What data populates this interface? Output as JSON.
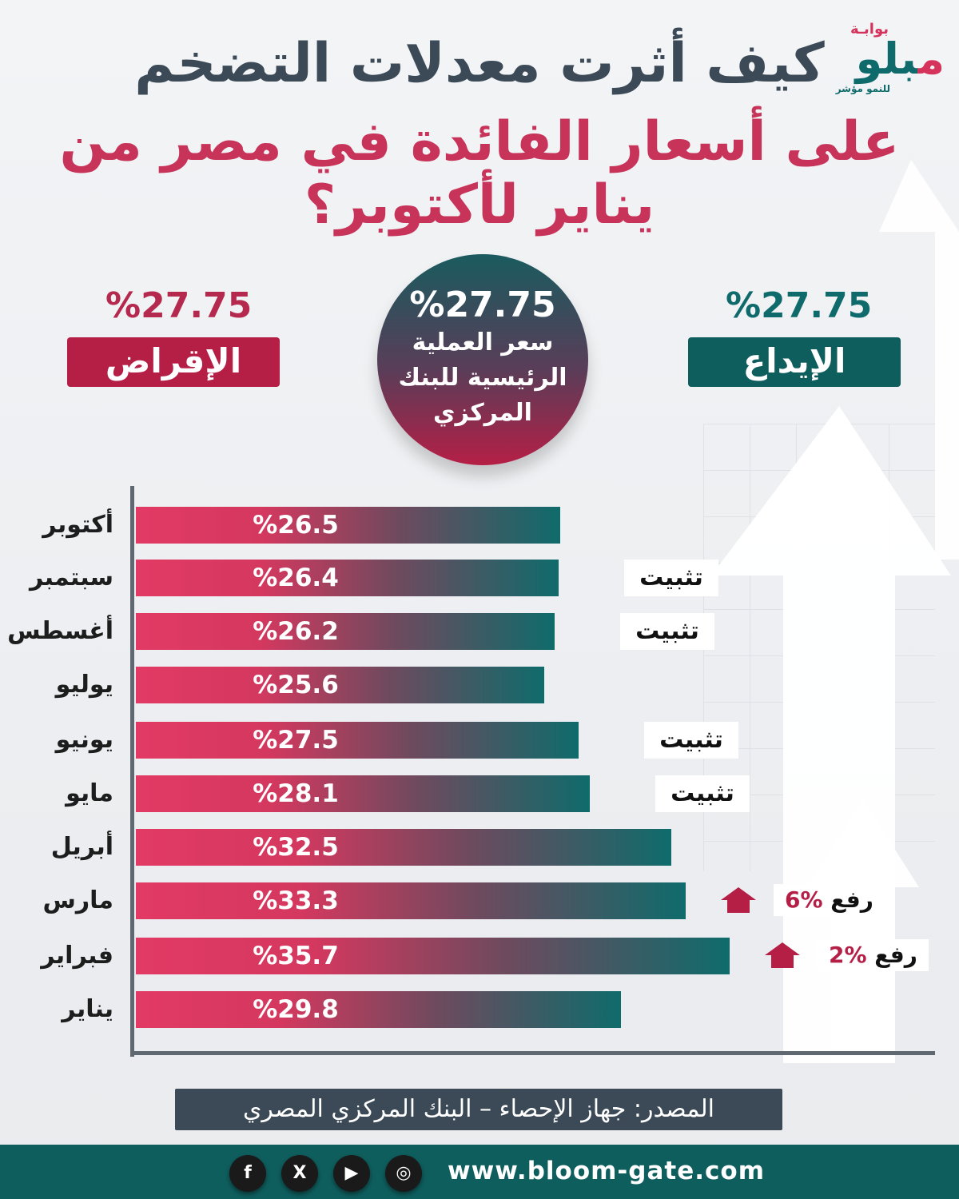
{
  "header": {
    "title_line1": "كيف أثرت معدلات التضخم",
    "title_line2": "على أسعار الفائدة في مصر من يناير لأكتوبر؟"
  },
  "logo": {
    "small": "بوابـة",
    "big_a": "بلو",
    "big_b": "م",
    "tagline": "للنمو مؤشر"
  },
  "rates": {
    "lending": {
      "value": "%27.75",
      "label": "الإقراض"
    },
    "deposit": {
      "value": "%27.75",
      "label": "الإيداع"
    },
    "main": {
      "value": "%27.75",
      "label": "سعر العملية الرئيسية للبنك المركزي"
    }
  },
  "colors": {
    "pink": "#e23a64",
    "teal": "#0f6b6b",
    "crimson": "#b51f46",
    "slate": "#3b4a56"
  },
  "chart_data": {
    "type": "bar",
    "orientation": "horizontal",
    "categories": [
      "أكتوبر",
      "سبتمبر",
      "أغسطس",
      "يوليو",
      "يونيو",
      "مايو",
      "أبريل",
      "مارس",
      "فبراير",
      "يناير"
    ],
    "values": [
      26.5,
      26.4,
      26.2,
      25.6,
      27.5,
      28.1,
      32.5,
      33.3,
      35.7,
      29.8
    ],
    "value_labels": [
      "%26.5",
      "%26.4",
      "%26.2",
      "%25.6",
      "%27.5",
      "%28.1",
      "%32.5",
      "%33.3",
      "%35.7",
      "%29.8"
    ],
    "xlim": [
      0,
      40
    ],
    "grid": false,
    "annotations": [
      {
        "month": "سبتمبر",
        "kind": "hold",
        "text": "تثبيت"
      },
      {
        "month": "أغسطس",
        "kind": "hold",
        "text": "تثبيت"
      },
      {
        "month": "يونيو",
        "kind": "hold",
        "text": "تثبيت"
      },
      {
        "month": "مايو",
        "kind": "hold",
        "text": "تثبيت"
      },
      {
        "month": "مارس",
        "kind": "raise",
        "word": "رفع",
        "amount": "%6"
      },
      {
        "month": "فبراير",
        "kind": "raise",
        "word": "رفع",
        "amount": "%2"
      }
    ]
  },
  "source": "المصدر: جهاز الإحصاء – البنك المركزي المصري",
  "footer": {
    "website": "www.bloom-gate.com",
    "social_icons": [
      "facebook-icon",
      "x-icon",
      "youtube-icon",
      "instagram-icon"
    ]
  }
}
